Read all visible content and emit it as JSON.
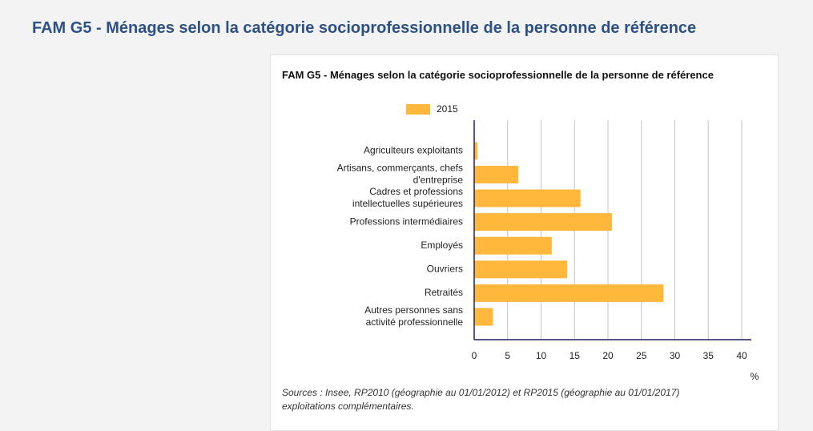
{
  "header": {
    "title": "FAM G5 - Ménages selon la catégorie socioprofessionnelle de la personne de référence"
  },
  "chart_data": {
    "type": "barh",
    "title": "FAM G5 - Ménages selon la catégorie socioprofessionnelle de la personne de référence",
    "categories": [
      [
        "Agriculteurs exploitants"
      ],
      [
        "Artisans, commerçants, chefs",
        "d'entreprise"
      ],
      [
        "Cadres et professions",
        "intellectuelles supérieures"
      ],
      [
        "Professions intermédiaires"
      ],
      [
        "Employés"
      ],
      [
        "Ouvriers"
      ],
      [
        "Retraités"
      ],
      [
        "Autres personnes sans",
        "activité professionnelle"
      ]
    ],
    "series": [
      {
        "name": "2015",
        "color": "#ffb83c",
        "values": [
          0.5,
          6.6,
          15.9,
          20.6,
          11.6,
          13.9,
          28.3,
          2.8
        ]
      }
    ],
    "xlim": [
      0,
      40
    ],
    "xticks": [
      0,
      5,
      10,
      15,
      20,
      25,
      30,
      35,
      40
    ],
    "grid": true,
    "x_label": "%",
    "source": "Sources : Insee, RP2010 (géographie au 01/01/2012) et RP2015 (géographie au 01/01/2017) exploitations complémentaires."
  }
}
